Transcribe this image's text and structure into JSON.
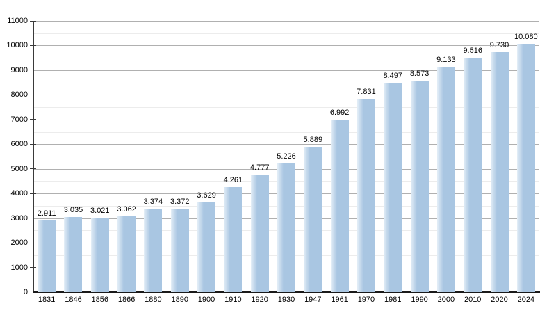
{
  "chart_data": {
    "type": "bar",
    "title": "",
    "xlabel": "",
    "ylabel": "",
    "categories": [
      "1831",
      "1846",
      "1856",
      "1866",
      "1880",
      "1890",
      "1900",
      "1910",
      "1920",
      "1930",
      "1947",
      "1961",
      "1970",
      "1981",
      "1990",
      "2000",
      "2010",
      "2020",
      "2024"
    ],
    "values": [
      2911,
      3035,
      3021,
      3062,
      3374,
      3372,
      3629,
      4261,
      4777,
      5226,
      5889,
      6992,
      7831,
      8497,
      8573,
      9133,
      9516,
      9730,
      10080
    ],
    "value_labels": [
      "2.911",
      "3.035",
      "3.021",
      "3.062",
      "3.374",
      "3.372",
      "3.629",
      "4.261",
      "4.777",
      "5.226",
      "5.889",
      "6.992",
      "7.831",
      "8.497",
      "8.573",
      "9.133",
      "9.516",
      "9.730",
      "10.080"
    ],
    "ylim": [
      0,
      11000
    ],
    "y_major_step": 1000,
    "y_minor_step": 500,
    "y_tick_labels": [
      "0",
      "1000",
      "2000",
      "3000",
      "4000",
      "5000",
      "6000",
      "7000",
      "8000",
      "9000",
      "10000",
      "11000"
    ],
    "grid": "on",
    "legend_position": "none",
    "colors": {
      "bar_fill": "#a9c6e2",
      "bar_fill_left_fade": "#e4eef7",
      "grid_major": "#b0b0b0",
      "grid_minor": "#ececec",
      "axis": "#3a3a3a",
      "x_axis": "#1a1a1a",
      "text": "#000000",
      "background": "#ffffff"
    }
  }
}
